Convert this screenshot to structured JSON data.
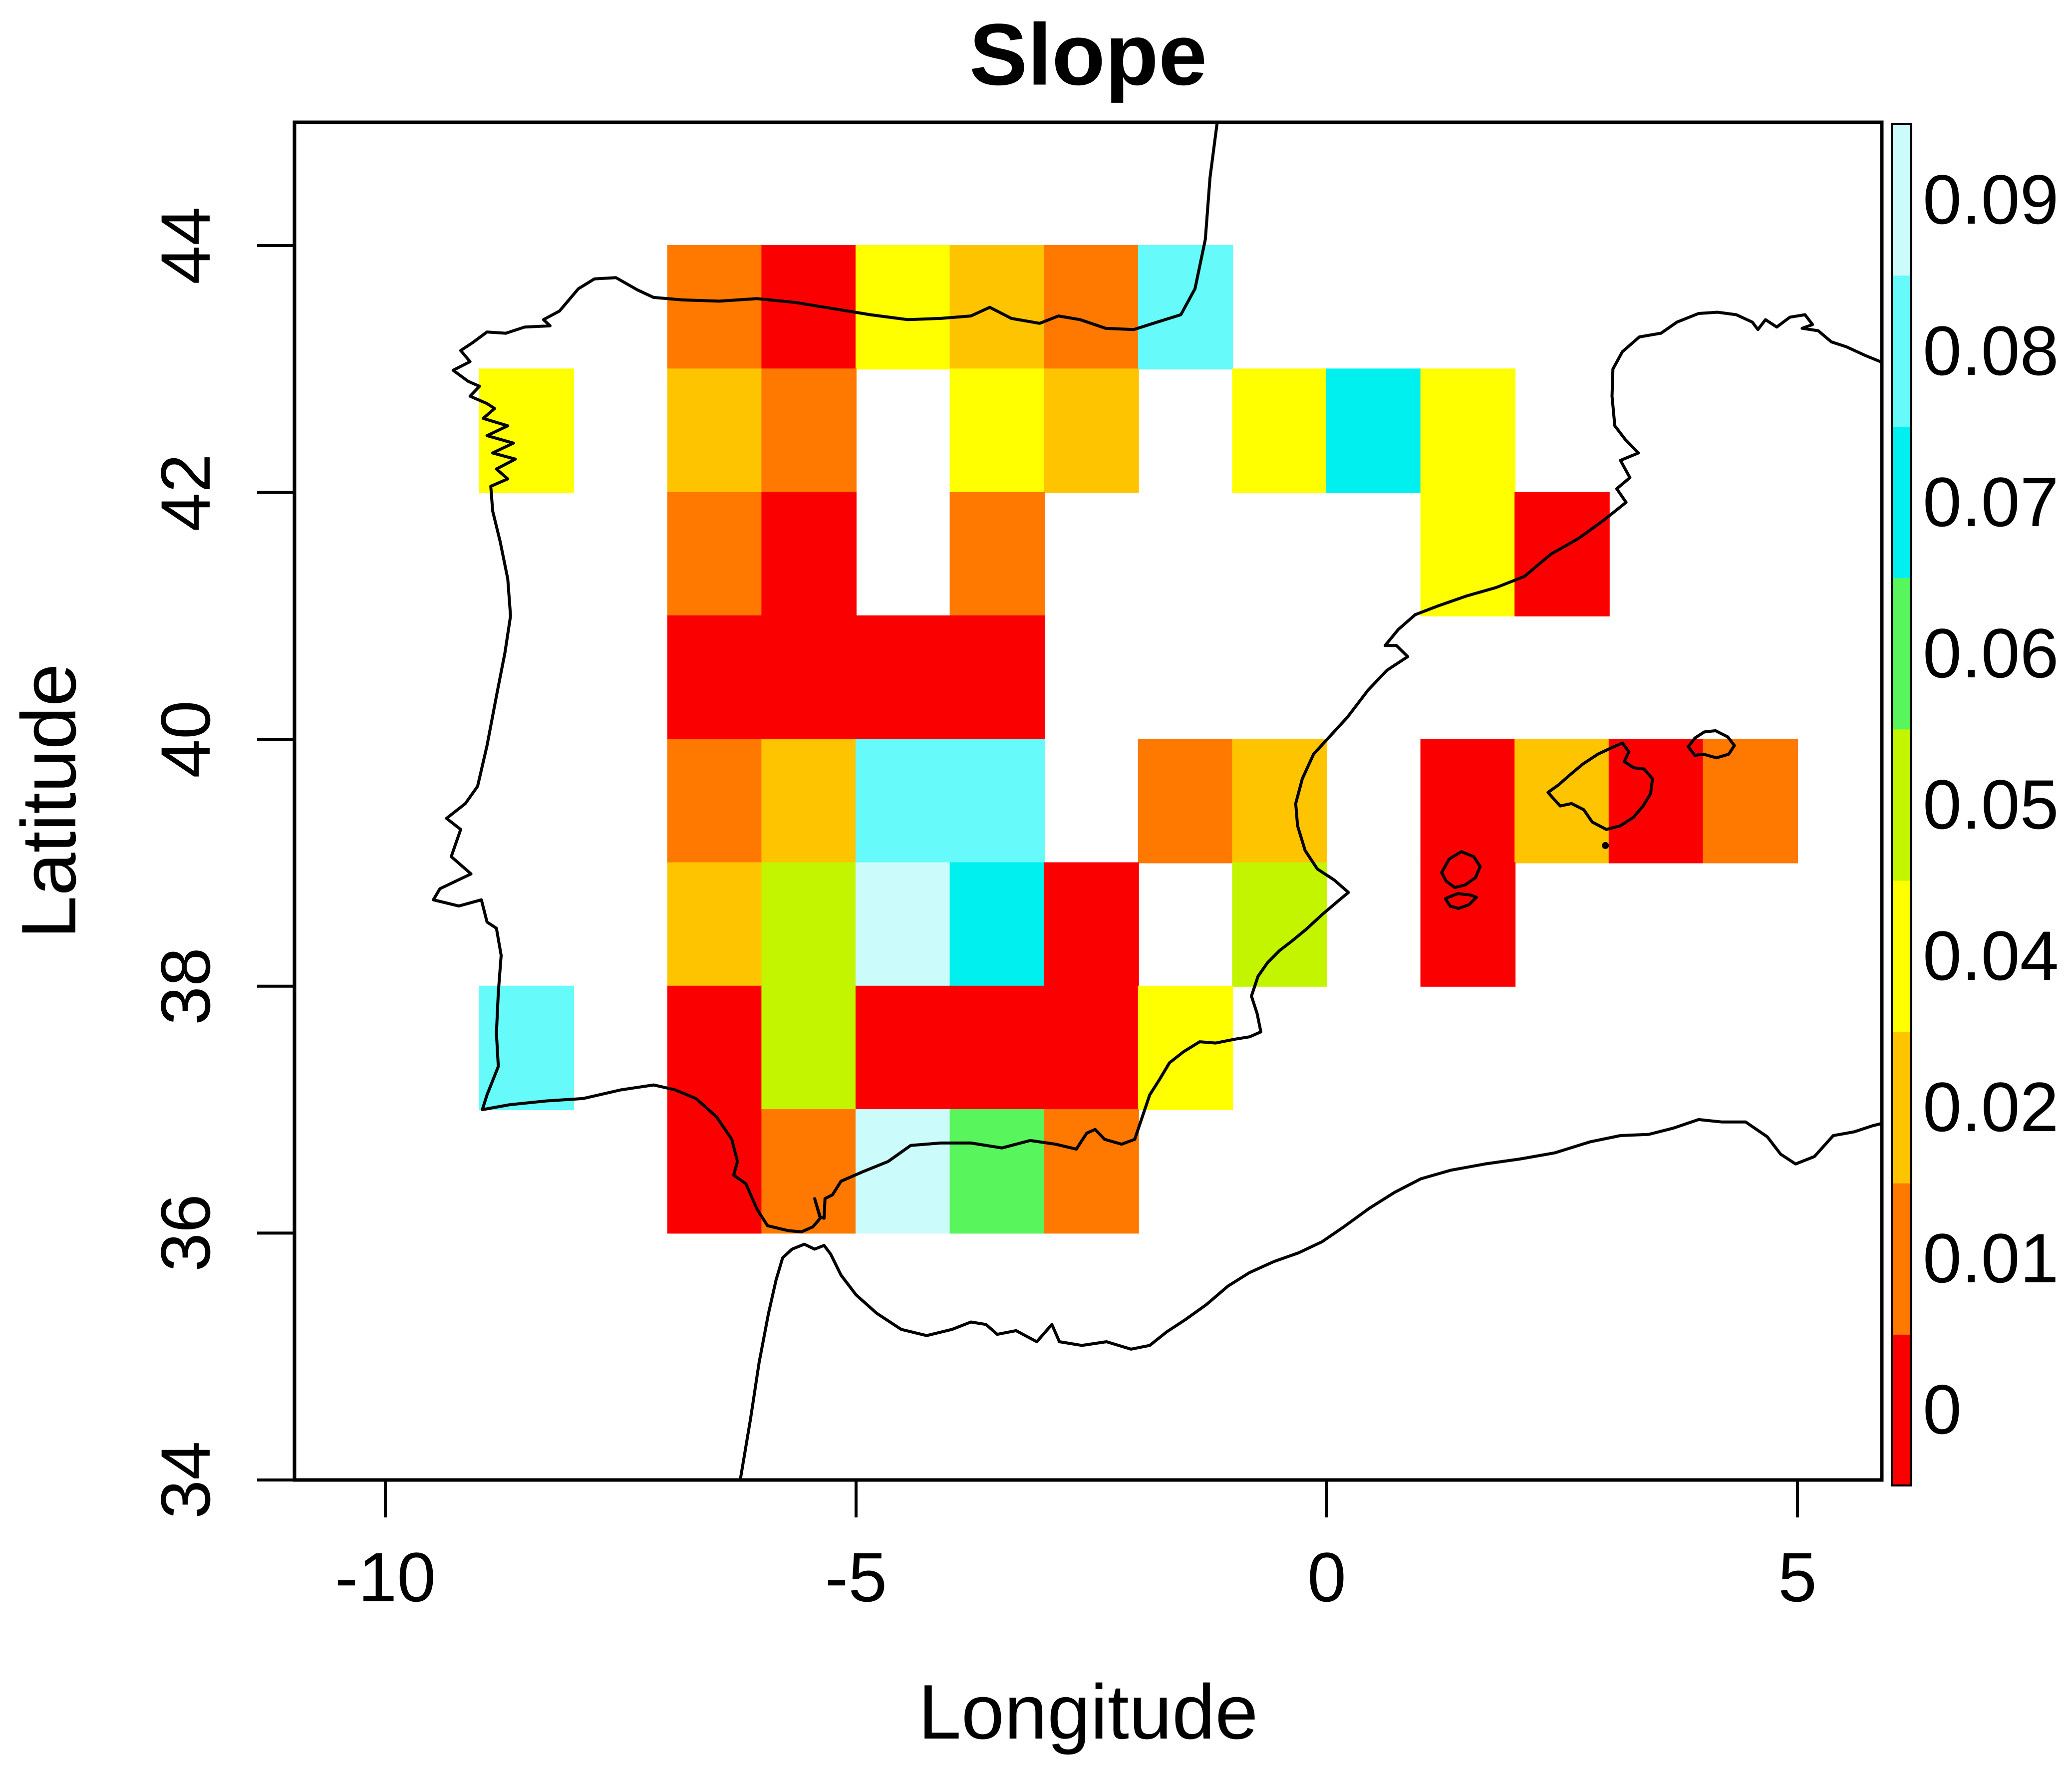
{
  "title": "Slope",
  "axes": {
    "x": {
      "label": "Longitude",
      "ticks": [
        {
          "value": -10,
          "label": "-10"
        },
        {
          "value": -5,
          "label": "-5"
        },
        {
          "value": 0,
          "label": "0"
        },
        {
          "value": 5,
          "label": "5"
        }
      ]
    },
    "y": {
      "label": "Latitude",
      "ticks": [
        {
          "value": 34,
          "label": "34"
        },
        {
          "value": 36,
          "label": "36"
        },
        {
          "value": 38,
          "label": "38"
        },
        {
          "value": 40,
          "label": "40"
        },
        {
          "value": 42,
          "label": "42"
        },
        {
          "value": 44,
          "label": "44"
        }
      ]
    }
  },
  "colorbar": {
    "position": "right",
    "levels_bottom_to_top": [
      {
        "value": 0,
        "label": "0",
        "color": "#FB0000"
      },
      {
        "value": 0.01,
        "label": "0.01",
        "color": "#FF7800"
      },
      {
        "value": 0.02,
        "label": "0.02",
        "color": "#FFC400"
      },
      {
        "value": 0.04,
        "label": "0.04",
        "color": "#FFFF00"
      },
      {
        "value": 0.05,
        "label": "0.05",
        "color": "#C3F500"
      },
      {
        "value": 0.06,
        "label": "0.06",
        "color": "#58F55C"
      },
      {
        "value": 0.07,
        "label": "0.07",
        "color": "#00F0F0"
      },
      {
        "value": 0.08,
        "label": "0.08",
        "color": "#66FAFA"
      },
      {
        "value": 0.09,
        "label": "0.09",
        "color": "#CCFBFB"
      }
    ]
  },
  "chart_data": {
    "type": "heatmap",
    "title": "Slope",
    "xlabel": "Longitude",
    "ylabel": "Latitude",
    "xlim": [
      -11.0,
      5.9
    ],
    "ylim": [
      34,
      45
    ],
    "cell_size_degrees": 1,
    "grid": false,
    "legend_position": "right colorbar",
    "cells": [
      {
        "lon": -7,
        "lat": 43,
        "value": 0.01
      },
      {
        "lon": -6,
        "lat": 43,
        "value": 0
      },
      {
        "lon": -5,
        "lat": 43,
        "value": 0.04
      },
      {
        "lon": -4,
        "lat": 43,
        "value": 0.02
      },
      {
        "lon": -3,
        "lat": 43,
        "value": 0.01
      },
      {
        "lon": -2,
        "lat": 43,
        "value": 0.08
      },
      {
        "lon": -9,
        "lat": 42,
        "value": 0.04
      },
      {
        "lon": -7,
        "lat": 42,
        "value": 0.02
      },
      {
        "lon": -6,
        "lat": 42,
        "value": 0.01
      },
      {
        "lon": -4,
        "lat": 42,
        "value": 0.04
      },
      {
        "lon": -3,
        "lat": 42,
        "value": 0.02
      },
      {
        "lon": -1,
        "lat": 42,
        "value": 0.04
      },
      {
        "lon": 0,
        "lat": 42,
        "value": 0.07
      },
      {
        "lon": 1,
        "lat": 42,
        "value": 0.04
      },
      {
        "lon": -7,
        "lat": 41,
        "value": 0.01
      },
      {
        "lon": -6,
        "lat": 41,
        "value": 0
      },
      {
        "lon": -4,
        "lat": 41,
        "value": 0.01
      },
      {
        "lon": 1,
        "lat": 41,
        "value": 0.04
      },
      {
        "lon": 2,
        "lat": 41,
        "value": 0
      },
      {
        "lon": -7,
        "lat": 40,
        "value": 0
      },
      {
        "lon": -6,
        "lat": 40,
        "value": 0
      },
      {
        "lon": -5,
        "lat": 40,
        "value": 0
      },
      {
        "lon": -4,
        "lat": 40,
        "value": 0
      },
      {
        "lon": -7,
        "lat": 39,
        "value": 0.01
      },
      {
        "lon": -6,
        "lat": 39,
        "value": 0.02
      },
      {
        "lon": -5,
        "lat": 39,
        "value": 0.08
      },
      {
        "lon": -4,
        "lat": 39,
        "value": 0.08
      },
      {
        "lon": -2,
        "lat": 39,
        "value": 0.01
      },
      {
        "lon": -1,
        "lat": 39,
        "value": 0.02
      },
      {
        "lon": 1,
        "lat": 39,
        "value": 0
      },
      {
        "lon": 2,
        "lat": 39,
        "value": 0.02
      },
      {
        "lon": 3,
        "lat": 39,
        "value": 0
      },
      {
        "lon": 4,
        "lat": 39,
        "value": 0.01
      },
      {
        "lon": -7,
        "lat": 38,
        "value": 0.02
      },
      {
        "lon": -6,
        "lat": 38,
        "value": 0.05
      },
      {
        "lon": -5,
        "lat": 38,
        "value": 0.09
      },
      {
        "lon": -4,
        "lat": 38,
        "value": 0.07
      },
      {
        "lon": -3,
        "lat": 38,
        "value": 0
      },
      {
        "lon": -1,
        "lat": 38,
        "value": 0.05
      },
      {
        "lon": 1,
        "lat": 38,
        "value": 0
      },
      {
        "lon": -9,
        "lat": 37,
        "value": 0.08
      },
      {
        "lon": -7,
        "lat": 37,
        "value": 0
      },
      {
        "lon": -6,
        "lat": 37,
        "value": 0.05
      },
      {
        "lon": -5,
        "lat": 37,
        "value": 0
      },
      {
        "lon": -4,
        "lat": 37,
        "value": 0
      },
      {
        "lon": -3,
        "lat": 37,
        "value": 0
      },
      {
        "lon": -2,
        "lat": 37,
        "value": 0.04
      },
      {
        "lon": -7,
        "lat": 36,
        "value": 0
      },
      {
        "lon": -6,
        "lat": 36,
        "value": 0.01
      },
      {
        "lon": -5,
        "lat": 36,
        "value": 0.09
      },
      {
        "lon": -4,
        "lat": 36,
        "value": 0.06
      },
      {
        "lon": -3,
        "lat": 36,
        "value": 0.01
      }
    ]
  },
  "map_outlines": {
    "iberia_france_coast": [
      [
        -1.16,
        45.02
      ],
      [
        -1.24,
        44.55
      ],
      [
        -1.29,
        44.05
      ],
      [
        -1.4,
        43.65
      ],
      [
        -1.55,
        43.44
      ],
      [
        -1.8,
        43.38
      ],
      [
        -2.05,
        43.32
      ],
      [
        -2.35,
        43.33
      ],
      [
        -2.62,
        43.4
      ],
      [
        -2.85,
        43.43
      ],
      [
        -3.05,
        43.37
      ],
      [
        -3.35,
        43.41
      ],
      [
        -3.58,
        43.5
      ],
      [
        -3.78,
        43.43
      ],
      [
        -4.1,
        43.41
      ],
      [
        -4.45,
        43.4
      ],
      [
        -4.85,
        43.44
      ],
      [
        -5.25,
        43.49
      ],
      [
        -5.65,
        43.54
      ],
      [
        -6.05,
        43.57
      ],
      [
        -6.45,
        43.55
      ],
      [
        -6.85,
        43.56
      ],
      [
        -7.15,
        43.58
      ],
      [
        -7.32,
        43.64
      ],
      [
        -7.55,
        43.74
      ],
      [
        -7.78,
        43.73
      ],
      [
        -7.95,
        43.65
      ],
      [
        -8.15,
        43.47
      ],
      [
        -8.32,
        43.4
      ],
      [
        -8.25,
        43.35
      ],
      [
        -8.52,
        43.34
      ],
      [
        -8.72,
        43.29
      ],
      [
        -8.92,
        43.3
      ],
      [
        -9.08,
        43.21
      ],
      [
        -9.2,
        43.15
      ],
      [
        -9.1,
        43.06
      ],
      [
        -9.28,
        42.99
      ],
      [
        -9.12,
        42.9
      ],
      [
        -9.0,
        42.86
      ],
      [
        -9.1,
        42.78
      ],
      [
        -8.92,
        42.72
      ],
      [
        -8.84,
        42.68
      ],
      [
        -8.96,
        42.6
      ],
      [
        -8.7,
        42.54
      ],
      [
        -8.92,
        42.46
      ],
      [
        -8.64,
        42.4
      ],
      [
        -8.86,
        42.32
      ],
      [
        -8.62,
        42.27
      ],
      [
        -8.82,
        42.19
      ],
      [
        -8.7,
        42.11
      ],
      [
        -8.88,
        42.05
      ],
      [
        -8.86,
        41.85
      ],
      [
        -8.78,
        41.6
      ],
      [
        -8.7,
        41.3
      ],
      [
        -8.67,
        41.0
      ],
      [
        -8.73,
        40.7
      ],
      [
        -8.82,
        40.35
      ],
      [
        -8.92,
        39.95
      ],
      [
        -9.02,
        39.62
      ],
      [
        -9.15,
        39.48
      ],
      [
        -9.35,
        39.36
      ],
      [
        -9.2,
        39.27
      ],
      [
        -9.3,
        39.05
      ],
      [
        -9.09,
        38.91
      ],
      [
        -9.42,
        38.79
      ],
      [
        -9.49,
        38.7
      ],
      [
        -9.22,
        38.65
      ],
      [
        -8.98,
        38.7
      ],
      [
        -8.92,
        38.52
      ],
      [
        -8.82,
        38.47
      ],
      [
        -8.77,
        38.25
      ],
      [
        -8.8,
        37.95
      ],
      [
        -8.82,
        37.62
      ],
      [
        -8.8,
        37.35
      ],
      [
        -8.92,
        37.12
      ],
      [
        -8.97,
        37.0
      ],
      [
        -8.68,
        37.04
      ],
      [
        -8.3,
        37.07
      ],
      [
        -7.9,
        37.09
      ],
      [
        -7.5,
        37.16
      ],
      [
        -7.15,
        37.2
      ],
      [
        -6.92,
        37.16
      ],
      [
        -6.7,
        37.09
      ],
      [
        -6.48,
        36.94
      ],
      [
        -6.32,
        36.76
      ],
      [
        -6.26,
        36.58
      ],
      [
        -6.3,
        36.47
      ],
      [
        -6.17,
        36.4
      ],
      [
        -6.05,
        36.19
      ],
      [
        -5.94,
        36.06
      ],
      [
        -5.72,
        36.02
      ],
      [
        -5.58,
        36.01
      ],
      [
        -5.46,
        36.05
      ],
      [
        -5.38,
        36.12
      ],
      [
        -5.44,
        36.28
      ],
      [
        -5.38,
        36.13
      ],
      [
        -5.34,
        36.12
      ],
      [
        -5.33,
        36.28
      ],
      [
        -5.25,
        36.31
      ],
      [
        -5.16,
        36.42
      ],
      [
        -4.92,
        36.5
      ],
      [
        -4.66,
        36.58
      ],
      [
        -4.42,
        36.71
      ],
      [
        -4.1,
        36.73
      ],
      [
        -3.78,
        36.73
      ],
      [
        -3.45,
        36.69
      ],
      [
        -3.15,
        36.75
      ],
      [
        -2.88,
        36.72
      ],
      [
        -2.66,
        36.68
      ],
      [
        -2.55,
        36.81
      ],
      [
        -2.46,
        36.84
      ],
      [
        -2.36,
        36.76
      ],
      [
        -2.18,
        36.72
      ],
      [
        -2.04,
        36.76
      ],
      [
        -1.96,
        36.94
      ],
      [
        -1.88,
        37.12
      ],
      [
        -1.78,
        37.24
      ],
      [
        -1.67,
        37.38
      ],
      [
        -1.52,
        37.47
      ],
      [
        -1.35,
        37.55
      ],
      [
        -1.18,
        37.54
      ],
      [
        -0.98,
        37.57
      ],
      [
        -0.82,
        37.59
      ],
      [
        -0.7,
        37.63
      ],
      [
        -0.74,
        37.78
      ],
      [
        -0.8,
        37.92
      ],
      [
        -0.73,
        38.08
      ],
      [
        -0.63,
        38.19
      ],
      [
        -0.5,
        38.29
      ],
      [
        -0.38,
        38.36
      ],
      [
        -0.22,
        38.46
      ],
      [
        -0.05,
        38.58
      ],
      [
        0.12,
        38.69
      ],
      [
        0.23,
        38.76
      ],
      [
        0.08,
        38.86
      ],
      [
        -0.1,
        38.95
      ],
      [
        -0.23,
        39.1
      ],
      [
        -0.31,
        39.3
      ],
      [
        -0.33,
        39.48
      ],
      [
        -0.26,
        39.68
      ],
      [
        -0.14,
        39.88
      ],
      [
        0.04,
        40.03
      ],
      [
        0.22,
        40.18
      ],
      [
        0.44,
        40.4
      ],
      [
        0.64,
        40.56
      ],
      [
        0.86,
        40.67
      ],
      [
        0.74,
        40.76
      ],
      [
        0.62,
        40.76
      ],
      [
        0.76,
        40.89
      ],
      [
        0.94,
        41.01
      ],
      [
        1.18,
        41.08
      ],
      [
        1.48,
        41.16
      ],
      [
        1.8,
        41.23
      ],
      [
        2.1,
        41.32
      ],
      [
        2.38,
        41.5
      ],
      [
        2.68,
        41.63
      ],
      [
        2.95,
        41.78
      ],
      [
        3.18,
        41.92
      ],
      [
        3.08,
        42.03
      ],
      [
        3.22,
        42.12
      ],
      [
        3.12,
        42.26
      ],
      [
        3.31,
        42.32
      ],
      [
        3.17,
        42.43
      ],
      [
        3.06,
        42.54
      ],
      [
        3.03,
        42.78
      ],
      [
        3.04,
        43.0
      ],
      [
        3.14,
        43.14
      ],
      [
        3.32,
        43.26
      ],
      [
        3.55,
        43.29
      ],
      [
        3.72,
        43.38
      ],
      [
        3.95,
        43.45
      ],
      [
        4.15,
        43.46
      ],
      [
        4.35,
        43.44
      ],
      [
        4.52,
        43.38
      ],
      [
        4.58,
        43.32
      ],
      [
        4.66,
        43.4
      ],
      [
        4.78,
        43.34
      ],
      [
        4.92,
        43.42
      ],
      [
        5.08,
        43.44
      ],
      [
        5.16,
        43.36
      ],
      [
        5.05,
        43.33
      ],
      [
        5.22,
        43.31
      ],
      [
        5.36,
        43.22
      ],
      [
        5.52,
        43.18
      ],
      [
        5.72,
        43.11
      ],
      [
        5.88,
        43.06
      ],
      [
        5.96,
        43.1
      ]
    ],
    "africa_coast": [
      [
        -6.23,
        34.0
      ],
      [
        -6.12,
        34.5
      ],
      [
        -6.03,
        34.95
      ],
      [
        -5.93,
        35.35
      ],
      [
        -5.85,
        35.62
      ],
      [
        -5.78,
        35.8
      ],
      [
        -5.68,
        35.87
      ],
      [
        -5.55,
        35.91
      ],
      [
        -5.44,
        35.87
      ],
      [
        -5.34,
        35.9
      ],
      [
        -5.27,
        35.83
      ],
      [
        -5.16,
        35.66
      ],
      [
        -5.0,
        35.5
      ],
      [
        -4.78,
        35.35
      ],
      [
        -4.52,
        35.22
      ],
      [
        -4.25,
        35.17
      ],
      [
        -3.98,
        35.22
      ],
      [
        -3.78,
        35.28
      ],
      [
        -3.62,
        35.26
      ],
      [
        -3.5,
        35.18
      ],
      [
        -3.3,
        35.21
      ],
      [
        -3.08,
        35.12
      ],
      [
        -2.92,
        35.26
      ],
      [
        -2.84,
        35.12
      ],
      [
        -2.6,
        35.09
      ],
      [
        -2.34,
        35.12
      ],
      [
        -2.08,
        35.06
      ],
      [
        -1.88,
        35.09
      ],
      [
        -1.7,
        35.2
      ],
      [
        -1.5,
        35.3
      ],
      [
        -1.28,
        35.42
      ],
      [
        -1.05,
        35.57
      ],
      [
        -0.82,
        35.68
      ],
      [
        -0.56,
        35.77
      ],
      [
        -0.3,
        35.84
      ],
      [
        -0.05,
        35.93
      ],
      [
        0.18,
        36.05
      ],
      [
        0.45,
        36.2
      ],
      [
        0.72,
        36.33
      ],
      [
        1.0,
        36.44
      ],
      [
        1.32,
        36.51
      ],
      [
        1.68,
        36.56
      ],
      [
        2.05,
        36.6
      ],
      [
        2.42,
        36.65
      ],
      [
        2.8,
        36.74
      ],
      [
        3.12,
        36.79
      ],
      [
        3.42,
        36.8
      ],
      [
        3.68,
        36.85
      ],
      [
        3.95,
        36.92
      ],
      [
        4.2,
        36.9
      ],
      [
        4.45,
        36.9
      ],
      [
        4.68,
        36.78
      ],
      [
        4.82,
        36.64
      ],
      [
        4.98,
        36.56
      ],
      [
        5.18,
        36.62
      ],
      [
        5.38,
        36.79
      ],
      [
        5.6,
        36.82
      ],
      [
        5.8,
        36.87
      ],
      [
        5.96,
        36.9
      ]
    ],
    "mallorca": [
      [
        2.35,
        39.57
      ],
      [
        2.46,
        39.63
      ],
      [
        2.58,
        39.71
      ],
      [
        2.72,
        39.8
      ],
      [
        2.88,
        39.88
      ],
      [
        3.02,
        39.93
      ],
      [
        3.14,
        39.97
      ],
      [
        3.21,
        39.9
      ],
      [
        3.16,
        39.82
      ],
      [
        3.26,
        39.77
      ],
      [
        3.37,
        39.76
      ],
      [
        3.46,
        39.68
      ],
      [
        3.44,
        39.56
      ],
      [
        3.36,
        39.46
      ],
      [
        3.26,
        39.37
      ],
      [
        3.12,
        39.3
      ],
      [
        2.97,
        39.27
      ],
      [
        2.82,
        39.33
      ],
      [
        2.73,
        39.43
      ],
      [
        2.6,
        39.48
      ],
      [
        2.48,
        39.46
      ],
      [
        2.42,
        39.51
      ],
      [
        2.35,
        39.57
      ]
    ],
    "menorca": [
      [
        3.84,
        39.94
      ],
      [
        3.91,
        40.01
      ],
      [
        4.01,
        40.06
      ],
      [
        4.13,
        40.07
      ],
      [
        4.26,
        40.02
      ],
      [
        4.33,
        39.95
      ],
      [
        4.27,
        39.88
      ],
      [
        4.14,
        39.85
      ],
      [
        4.0,
        39.88
      ],
      [
        3.91,
        39.87
      ],
      [
        3.84,
        39.94
      ]
    ],
    "ibiza": [
      [
        1.22,
        38.92
      ],
      [
        1.3,
        39.03
      ],
      [
        1.43,
        39.09
      ],
      [
        1.56,
        39.05
      ],
      [
        1.63,
        38.97
      ],
      [
        1.58,
        38.88
      ],
      [
        1.47,
        38.82
      ],
      [
        1.36,
        38.8
      ],
      [
        1.27,
        38.85
      ],
      [
        1.22,
        38.92
      ]
    ],
    "formentera": [
      [
        1.26,
        38.71
      ],
      [
        1.39,
        38.75
      ],
      [
        1.52,
        38.74
      ],
      [
        1.59,
        38.72
      ],
      [
        1.51,
        38.66
      ],
      [
        1.4,
        38.63
      ],
      [
        1.31,
        38.65
      ],
      [
        1.26,
        38.71
      ]
    ],
    "islet_dots": [
      [
        2.96,
        39.14
      ]
    ]
  }
}
